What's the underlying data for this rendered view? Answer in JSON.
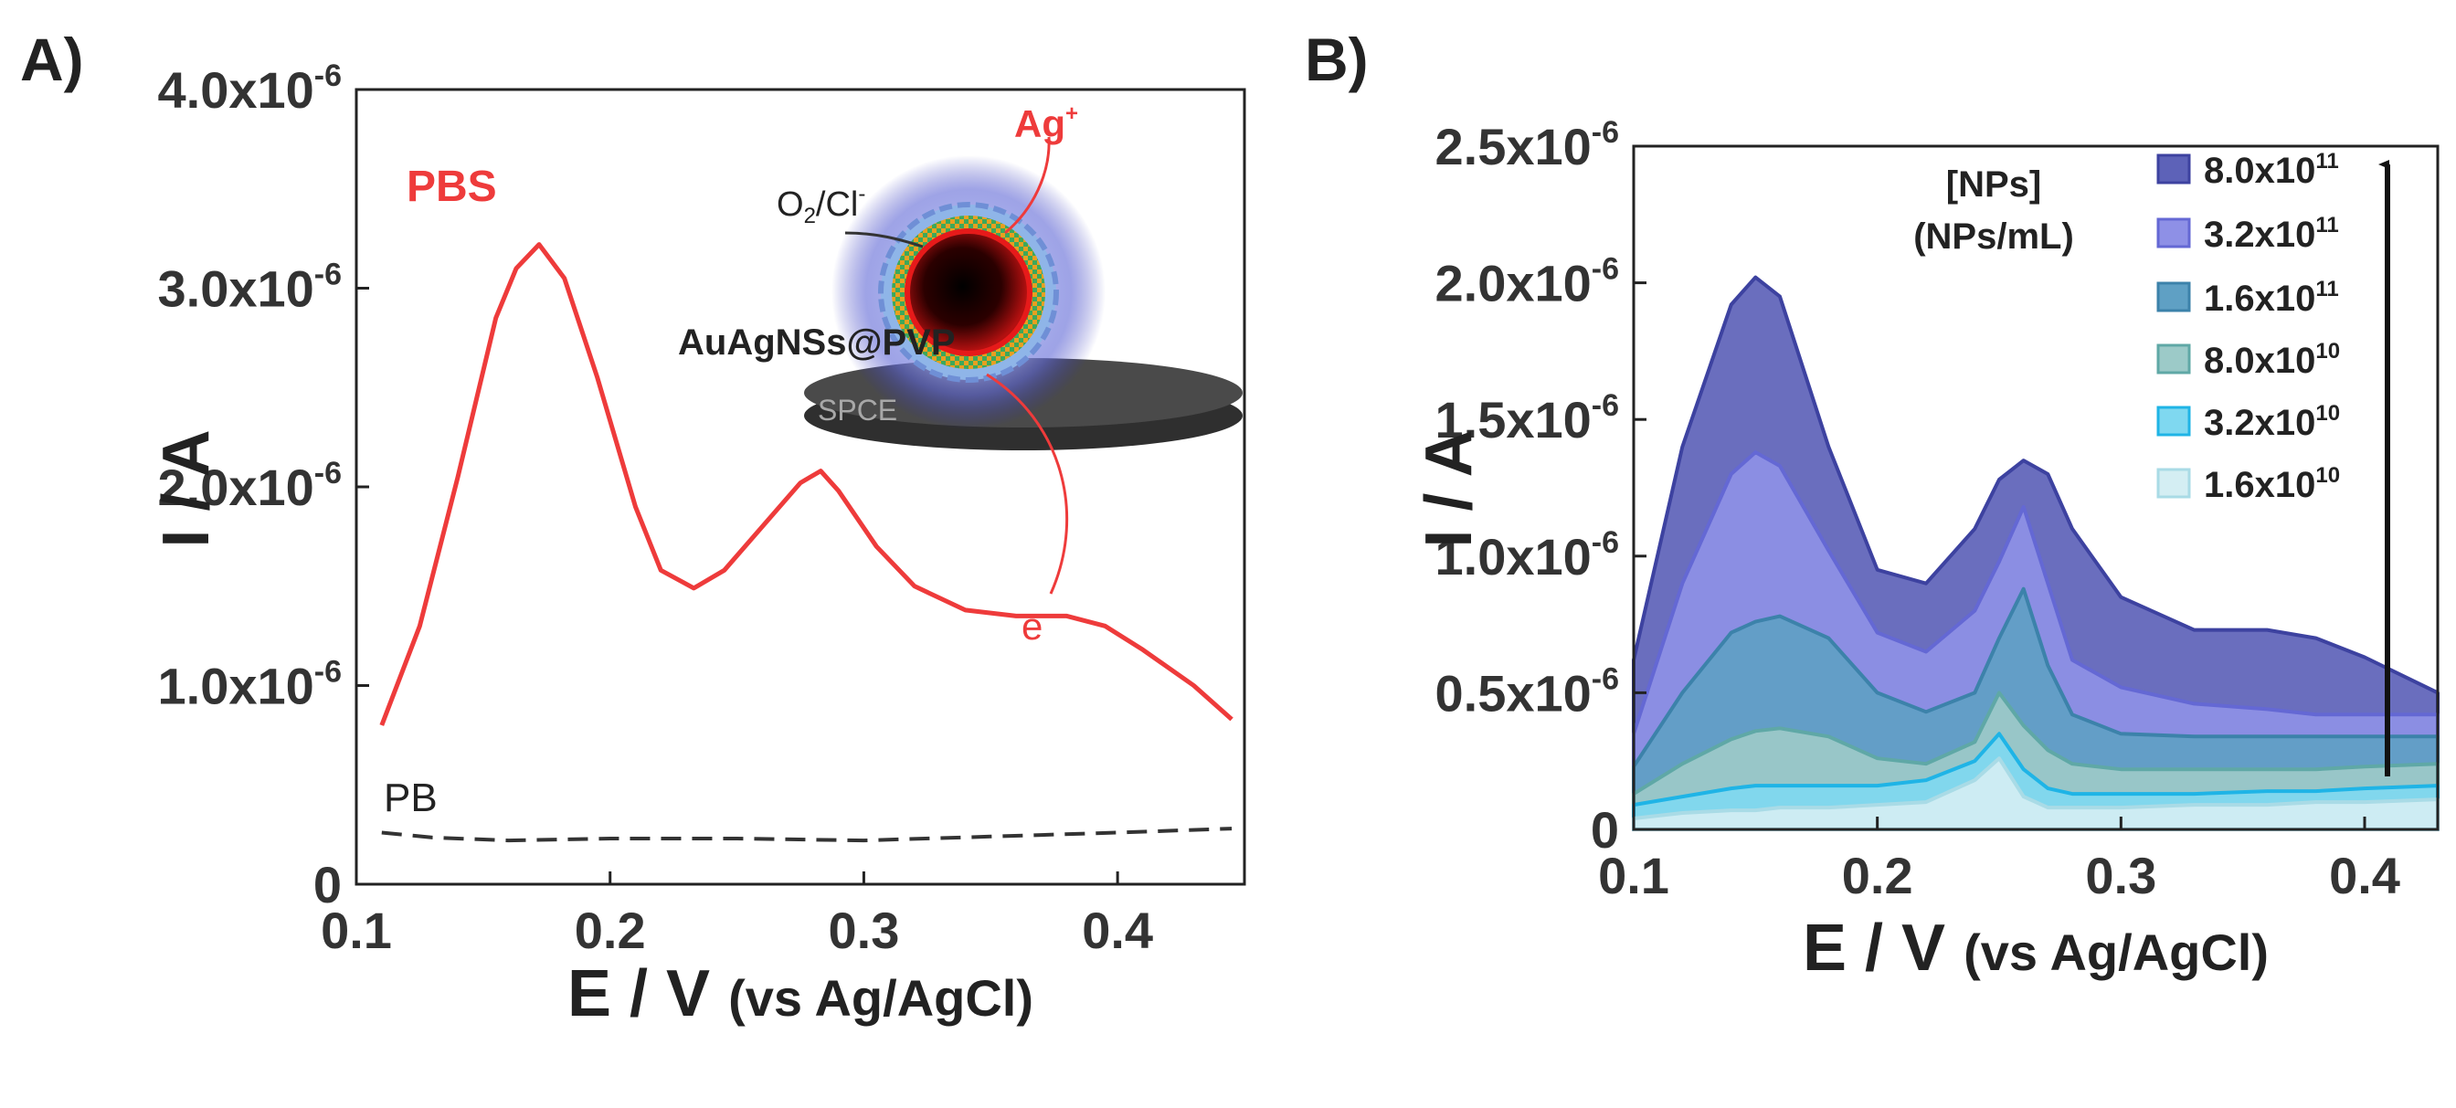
{
  "chart_data": [
    {
      "panel": "A)",
      "type": "line",
      "xlabel": "E / V",
      "xlabel_suffix": "(vs Ag/AgCl)",
      "ylabel": "I / A",
      "xlim": [
        0.1,
        0.45
      ],
      "ylim": [
        0,
        4e-06
      ],
      "x_ticks": [
        "0.1",
        "0.2",
        "0.3",
        "0.4"
      ],
      "y_ticks": [
        {
          "value": 0,
          "mant": "0",
          "exp": ""
        },
        {
          "value": 1e-06,
          "mant": "1.0x10",
          "exp": "-6"
        },
        {
          "value": 2e-06,
          "mant": "2.0x10",
          "exp": "-6"
        },
        {
          "value": 3e-06,
          "mant": "3.0x10",
          "exp": "-6"
        },
        {
          "value": 4e-06,
          "mant": "4.0x10",
          "exp": "-6"
        }
      ],
      "series": [
        {
          "name": "PBS",
          "color": "#ee3b3b",
          "style": "solid",
          "points": [
            [
              0.11,
              0.8
            ],
            [
              0.125,
              1.3
            ],
            [
              0.14,
              2.05
            ],
            [
              0.155,
              2.85
            ],
            [
              0.163,
              3.1
            ],
            [
              0.172,
              3.22
            ],
            [
              0.182,
              3.05
            ],
            [
              0.195,
              2.55
            ],
            [
              0.21,
              1.9
            ],
            [
              0.22,
              1.58
            ],
            [
              0.233,
              1.49
            ],
            [
              0.245,
              1.58
            ],
            [
              0.26,
              1.8
            ],
            [
              0.275,
              2.02
            ],
            [
              0.283,
              2.08
            ],
            [
              0.29,
              1.98
            ],
            [
              0.305,
              1.7
            ],
            [
              0.32,
              1.5
            ],
            [
              0.34,
              1.38
            ],
            [
              0.36,
              1.35
            ],
            [
              0.38,
              1.35
            ],
            [
              0.395,
              1.3
            ],
            [
              0.41,
              1.18
            ],
            [
              0.43,
              1.0
            ],
            [
              0.445,
              0.83
            ]
          ]
        },
        {
          "name": "PB",
          "color": "#333333",
          "style": "dashed",
          "points": [
            [
              0.11,
              0.26
            ],
            [
              0.13,
              0.235
            ],
            [
              0.16,
              0.22
            ],
            [
              0.2,
              0.23
            ],
            [
              0.25,
              0.23
            ],
            [
              0.3,
              0.22
            ],
            [
              0.35,
              0.24
            ],
            [
              0.4,
              0.26
            ],
            [
              0.445,
              0.28
            ]
          ]
        }
      ],
      "annotations": {
        "pbs": "PBS",
        "pb": "PB",
        "nanostructure": "AuAgNSs@PVP",
        "oxidant": "O",
        "oxidant_sub": "2",
        "oxidant_rest": "/Cl",
        "oxidant_sup": "-",
        "ion": "Ag",
        "ion_sup": "+",
        "electron": "e",
        "electron_sup": "-",
        "electrode": "SPCE"
      }
    },
    {
      "panel": "B)",
      "type": "area",
      "xlabel": "E / V",
      "xlabel_suffix": "(vs Ag/AgCl)",
      "ylabel": "I / A",
      "xlim": [
        0.1,
        0.43
      ],
      "ylim": [
        0,
        2.5e-06
      ],
      "x_ticks": [
        "0.1",
        "0.2",
        "0.3",
        "0.4"
      ],
      "y_ticks": [
        {
          "value": 0,
          "mant": "0",
          "exp": ""
        },
        {
          "value": 5e-07,
          "mant": "0.5x10",
          "exp": "-6"
        },
        {
          "value": 1e-06,
          "mant": "1.0x10",
          "exp": "-6"
        },
        {
          "value": 1.5e-06,
          "mant": "1.5x10",
          "exp": "-6"
        },
        {
          "value": 2e-06,
          "mant": "2.0x10",
          "exp": "-6"
        },
        {
          "value": 2.5e-06,
          "mant": "2.5x10",
          "exp": "-6"
        }
      ],
      "legend_title_1": "[NPs]",
      "legend_title_2": "(NPs/mL)",
      "legend_position": "top-right",
      "x": [
        0.1,
        0.12,
        0.14,
        0.15,
        0.16,
        0.18,
        0.2,
        0.22,
        0.24,
        0.25,
        0.26,
        0.27,
        0.28,
        0.3,
        0.33,
        0.36,
        0.38,
        0.4,
        0.43
      ],
      "series": [
        {
          "name_mant": "8.0x10",
          "name_exp": "11",
          "fill": "#5d62b8",
          "stroke": "#3d42a0",
          "values": [
            0.62,
            1.4,
            1.92,
            2.02,
            1.95,
            1.4,
            0.95,
            0.9,
            1.1,
            1.28,
            1.35,
            1.3,
            1.1,
            0.85,
            0.73,
            0.73,
            0.7,
            0.63,
            0.5
          ]
        },
        {
          "name_mant": "3.2x10",
          "name_exp": "11",
          "fill": "#8e90e6",
          "stroke": "#6468d4",
          "values": [
            0.35,
            0.9,
            1.3,
            1.38,
            1.33,
            1.02,
            0.72,
            0.65,
            0.8,
            0.98,
            1.18,
            0.9,
            0.62,
            0.52,
            0.46,
            0.44,
            0.42,
            0.42,
            0.42
          ]
        },
        {
          "name_mant": "1.6x10",
          "name_exp": "11",
          "fill": "#5fa0c4",
          "stroke": "#3c82aa",
          "values": [
            0.23,
            0.5,
            0.72,
            0.76,
            0.78,
            0.7,
            0.5,
            0.43,
            0.5,
            0.7,
            0.88,
            0.6,
            0.42,
            0.35,
            0.34,
            0.34,
            0.34,
            0.34,
            0.34
          ]
        },
        {
          "name_mant": "8.0x10",
          "name_exp": "10",
          "fill": "#9ccac8",
          "stroke": "#5fa8a6",
          "values": [
            0.13,
            0.24,
            0.33,
            0.36,
            0.37,
            0.34,
            0.26,
            0.24,
            0.32,
            0.5,
            0.38,
            0.29,
            0.24,
            0.22,
            0.22,
            0.22,
            0.22,
            0.23,
            0.24
          ]
        },
        {
          "name_mant": "3.2x10",
          "name_exp": "10",
          "fill": "#7fd8f0",
          "stroke": "#1fb4e6",
          "values": [
            0.09,
            0.12,
            0.15,
            0.16,
            0.16,
            0.16,
            0.16,
            0.18,
            0.25,
            0.35,
            0.22,
            0.15,
            0.13,
            0.13,
            0.13,
            0.14,
            0.14,
            0.15,
            0.16
          ]
        },
        {
          "name_mant": "1.6x10",
          "name_exp": "10",
          "fill": "#d4eef3",
          "stroke": "#a9dbe6",
          "values": [
            0.04,
            0.06,
            0.07,
            0.07,
            0.08,
            0.08,
            0.09,
            0.1,
            0.18,
            0.26,
            0.12,
            0.08,
            0.08,
            0.08,
            0.09,
            0.09,
            0.1,
            0.1,
            0.11
          ]
        }
      ]
    }
  ]
}
